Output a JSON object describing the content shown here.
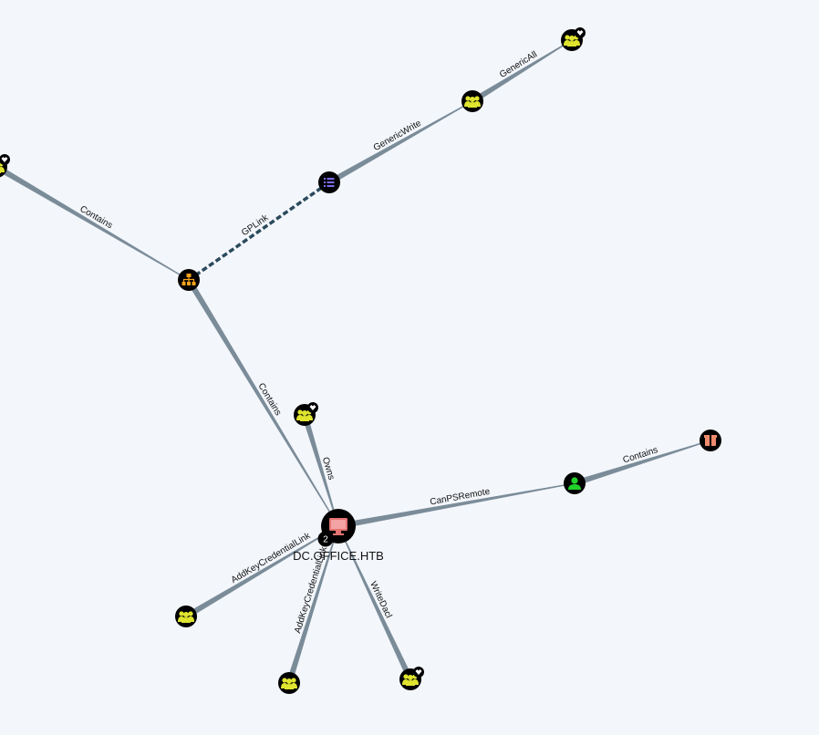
{
  "graph": {
    "nodes": [
      {
        "id": "n_edge_group",
        "kind": "group",
        "admin": true,
        "label": ""
      },
      {
        "id": "n_ou",
        "kind": "ou",
        "label": ""
      },
      {
        "id": "n_gpo",
        "kind": "gpo",
        "label": ""
      },
      {
        "id": "n_group_gw",
        "kind": "group",
        "label": ""
      },
      {
        "id": "n_group_ga",
        "kind": "group",
        "admin": true,
        "label": ""
      },
      {
        "id": "n_group_owns",
        "kind": "group",
        "admin": true,
        "label": ""
      },
      {
        "id": "n_computer",
        "kind": "computer",
        "label": "DC.OFFICE.HTB",
        "badge": "2"
      },
      {
        "id": "n_user",
        "kind": "user",
        "label": ""
      },
      {
        "id": "n_container",
        "kind": "container",
        "label": ""
      },
      {
        "id": "n_group_akcl1",
        "kind": "group",
        "label": ""
      },
      {
        "id": "n_group_akcl2",
        "kind": "group",
        "label": ""
      },
      {
        "id": "n_group_wd",
        "kind": "group",
        "admin": true,
        "label": ""
      }
    ],
    "edges": [
      {
        "from": "n_edge_group",
        "to": "n_ou",
        "label": "Contains"
      },
      {
        "from": "n_ou",
        "to": "n_gpo",
        "label": "GPLink",
        "dashed": true
      },
      {
        "from": "n_gpo",
        "to": "n_group_gw",
        "label": "GenericWrite"
      },
      {
        "from": "n_group_gw",
        "to": "n_group_ga",
        "label": "GenericAll"
      },
      {
        "from": "n_ou",
        "to": "n_computer",
        "label": "Contains"
      },
      {
        "from": "n_group_owns",
        "to": "n_computer",
        "label": "Owns"
      },
      {
        "from": "n_computer",
        "to": "n_user",
        "label": "CanPSRemote"
      },
      {
        "from": "n_user",
        "to": "n_container",
        "label": "Contains"
      },
      {
        "from": "n_group_akcl1",
        "to": "n_computer",
        "label": "AddKeyCredentialLink"
      },
      {
        "from": "n_group_akcl2",
        "to": "n_computer",
        "label": "AddKeyCredentialLink"
      },
      {
        "from": "n_group_wd",
        "to": "n_computer",
        "label": "WriteDacl"
      }
    ]
  },
  "colors": {
    "background": "#f3f6fb",
    "edge": "#7b8c99",
    "gplink": "#2b4a5c",
    "group": "#dfe42f",
    "ou": "#f7a21b",
    "gpo": "#7b6cf0",
    "computer": "#e57373",
    "user": "#22d02a",
    "container": "#f08a6e",
    "node_bg": "#000000"
  },
  "icons": {
    "group": "users-icon",
    "ou": "org-chart-icon",
    "gpo": "list-icon",
    "computer": "monitor-icon",
    "user": "user-icon",
    "container": "box-icon",
    "admin": "crown-icon"
  }
}
